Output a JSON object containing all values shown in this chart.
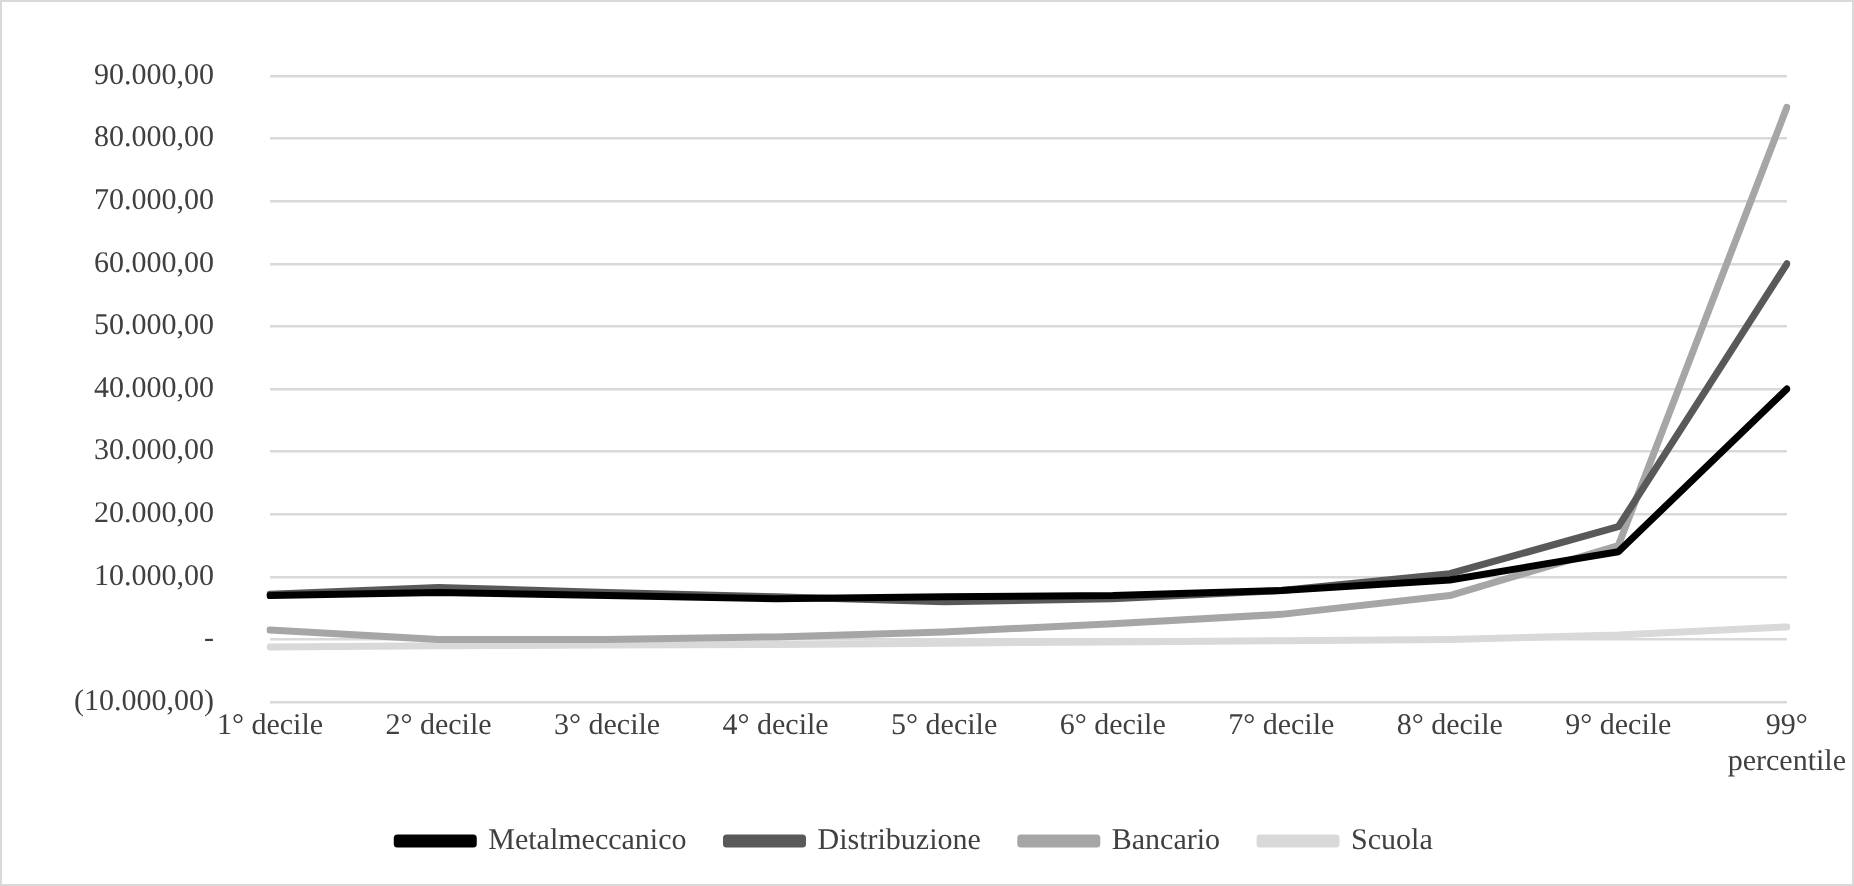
{
  "chart_data": {
    "type": "line",
    "categories": [
      "1° decile",
      "2° decile",
      "3° decile",
      "4° decile",
      "5° decile",
      "6° decile",
      "7° decile",
      "8° decile",
      "9° decile",
      "99° percentile"
    ],
    "series": [
      {
        "name": "Metalmeccanico",
        "color": "#000000",
        "values": [
          7000,
          7500,
          7000,
          6500,
          6800,
          7000,
          7800,
          9500,
          14000,
          40000
        ]
      },
      {
        "name": "Distribuzione",
        "color": "#595959",
        "values": [
          7200,
          8300,
          7500,
          6800,
          6000,
          6500,
          7800,
          10500,
          18000,
          60000
        ]
      },
      {
        "name": "Bancario",
        "color": "#a6a6a6",
        "values": [
          1500,
          0,
          0,
          400,
          1200,
          2500,
          4000,
          7000,
          15000,
          85000
        ]
      },
      {
        "name": "Scuola",
        "color": "#d9d9d9",
        "values": [
          -1200,
          -1000,
          -900,
          -800,
          -600,
          -400,
          -200,
          0,
          700,
          2000
        ]
      }
    ],
    "ylim": [
      -10000,
      90000
    ],
    "yticks": [
      {
        "value": -10000,
        "label": "(10.000,00)"
      },
      {
        "value": 0,
        "label": "-"
      },
      {
        "value": 10000,
        "label": "10.000,00"
      },
      {
        "value": 20000,
        "label": "20.000,00"
      },
      {
        "value": 30000,
        "label": "30.000,00"
      },
      {
        "value": 40000,
        "label": "40.000,00"
      },
      {
        "value": 50000,
        "label": "50.000,00"
      },
      {
        "value": 60000,
        "label": "60.000,00"
      },
      {
        "value": 70000,
        "label": "70.000,00"
      },
      {
        "value": 80000,
        "label": "80.000,00"
      },
      {
        "value": 90000,
        "label": "90.000,00"
      }
    ],
    "grid": "y",
    "legend": "bottom",
    "marker": "none",
    "line_style": "solid"
  }
}
